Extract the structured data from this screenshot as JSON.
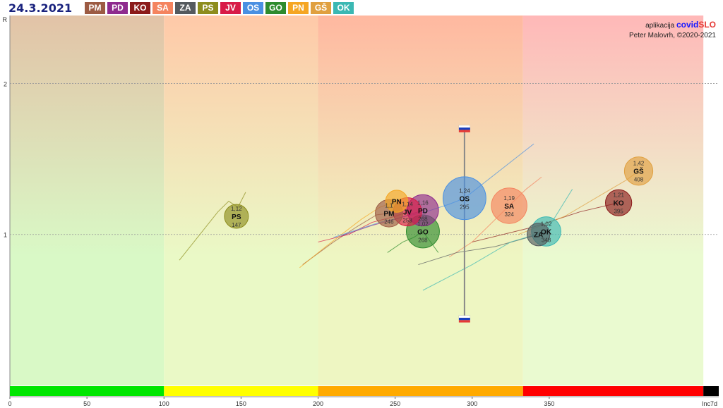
{
  "date": "24.3.2021",
  "credits": {
    "app_prefix": "aplikacija",
    "app_name_a": "covid",
    "app_name_b": "SLO",
    "author": "Peter Malovrh, ©2020-2021"
  },
  "colors": {
    "PM": "#9c5b43",
    "PD": "#8e2b8e",
    "KO": "#8b1a1a",
    "SA": "#f4845f",
    "ZA": "#555a5e",
    "PS": "#8d8d1e",
    "JV": "#d81b47",
    "OS": "#4a90e2",
    "GO": "#2e8b2e",
    "PN": "#f5a623",
    "GŠ": "#e0a040",
    "OK": "#3bb8b3",
    "zone_green": "#00e600",
    "zone_yellow": "#ffff00",
    "zone_orange": "#ffaa00",
    "zone_red": "#ff0000",
    "zone_black": "#000000"
  },
  "chart_data": {
    "type": "scatter",
    "xlabel": "Inc7d",
    "ylabel": "R",
    "xlim": [
      0,
      460
    ],
    "ylim": [
      0,
      2.45
    ],
    "x_ticks": [
      "0",
      "50",
      "100",
      "150",
      "200",
      "250",
      "300",
      "350"
    ],
    "x_tick_values": [
      0,
      50,
      100,
      150,
      200,
      250,
      300,
      350
    ],
    "y_ticks": [
      "1",
      "2"
    ],
    "y_tick_values": [
      1,
      2
    ],
    "zones": [
      {
        "from": 0,
        "to": 100,
        "color": "zone_green"
      },
      {
        "from": 100,
        "to": 200,
        "color": "zone_yellow"
      },
      {
        "from": 200,
        "to": 333,
        "color": "zone_orange"
      },
      {
        "from": 333,
        "to": 450,
        "color": "zone_red"
      },
      {
        "from": 450,
        "to": 460,
        "color": "zone_black"
      }
    ],
    "slovenia": {
      "x": 295,
      "r_high": 1.7,
      "r_low": 0.44
    },
    "regions": [
      {
        "code": "PS",
        "r": "1,12",
        "inc": "147",
        "x": 147,
        "y": 1.12,
        "size": 1.0,
        "trail": [
          [
            110,
            0.83
          ],
          [
            135,
            1.15
          ],
          [
            142,
            1.22
          ],
          [
            148,
            1.18
          ],
          [
            153,
            1.28
          ]
        ]
      },
      {
        "code": "PM",
        "r": "1,1",
        "inc": "246",
        "x": 246,
        "y": 1.14,
        "size": 1.3,
        "trail": [
          [
            190,
            0.8
          ],
          [
            210,
            0.95
          ],
          [
            225,
            1.05
          ],
          [
            238,
            1.13
          ],
          [
            246,
            1.14
          ]
        ]
      },
      {
        "code": "PN",
        "r": "",
        "inc": "",
        "x": 251,
        "y": 1.22,
        "size": 0.85,
        "trail": [
          [
            188,
            0.78
          ],
          [
            205,
            0.92
          ],
          [
            228,
            1.1
          ],
          [
            240,
            1.18
          ],
          [
            251,
            1.22
          ]
        ]
      },
      {
        "code": "JV",
        "r": "1,14",
        "inc": "258",
        "x": 258,
        "y": 1.15,
        "size": 1.4,
        "trail": [
          [
            200,
            0.95
          ],
          [
            220,
            1.0
          ],
          [
            235,
            1.08
          ],
          [
            250,
            1.12
          ],
          [
            258,
            1.15
          ]
        ]
      },
      {
        "code": "PD",
        "r": "1,16",
        "inc": "268",
        "x": 268,
        "y": 1.16,
        "size": 1.7,
        "trail": [
          [
            215,
            0.99
          ],
          [
            235,
            1.06
          ],
          [
            250,
            1.1
          ],
          [
            262,
            1.14
          ],
          [
            268,
            1.16
          ]
        ]
      },
      {
        "code": "GO",
        "r": "1,02",
        "inc": "268",
        "x": 268,
        "y": 1.02,
        "size": 1.9,
        "trail": [
          [
            245,
            0.88
          ],
          [
            255,
            0.95
          ],
          [
            262,
            0.98
          ],
          [
            268,
            1.02
          ],
          [
            278,
            0.88
          ]
        ]
      },
      {
        "code": "OS",
        "r": "1,24",
        "inc": "295",
        "x": 295,
        "y": 1.24,
        "size": 3.2,
        "trail": [
          [
            210,
            0.98
          ],
          [
            240,
            1.08
          ],
          [
            270,
            1.15
          ],
          [
            285,
            1.2
          ],
          [
            295,
            1.24
          ],
          [
            340,
            1.6
          ]
        ]
      },
      {
        "code": "SA",
        "r": "1,19",
        "inc": "324",
        "x": 324,
        "y": 1.19,
        "size": 2.2,
        "trail": [
          [
            285,
            0.85
          ],
          [
            300,
            0.95
          ],
          [
            315,
            1.1
          ],
          [
            335,
            1.3
          ],
          [
            345,
            1.38
          ]
        ]
      },
      {
        "code": "ZA",
        "r": "",
        "inc": "",
        "x": 343,
        "y": 1.0,
        "size": 0.9,
        "trail": [
          [
            265,
            0.8
          ],
          [
            290,
            0.88
          ],
          [
            315,
            0.92
          ],
          [
            343,
            1.0
          ]
        ]
      },
      {
        "code": "OK",
        "r": "1,02",
        "inc": "348",
        "x": 348,
        "y": 1.02,
        "size": 1.5,
        "trail": [
          [
            268,
            0.63
          ],
          [
            300,
            0.8
          ],
          [
            325,
            0.95
          ],
          [
            348,
            1.02
          ],
          [
            365,
            1.3
          ]
        ]
      },
      {
        "code": "KO",
        "r": "1,21",
        "inc": "395",
        "x": 395,
        "y": 1.21,
        "size": 1.2,
        "trail": [
          [
            300,
            0.95
          ],
          [
            340,
            1.05
          ],
          [
            370,
            1.15
          ],
          [
            395,
            1.21
          ]
        ]
      },
      {
        "code": "GŠ",
        "r": "1,42",
        "inc": "408",
        "x": 408,
        "y": 1.42,
        "size": 1.4,
        "trail": [
          [
            330,
            1.0
          ],
          [
            360,
            1.12
          ],
          [
            385,
            1.27
          ],
          [
            400,
            1.36
          ],
          [
            408,
            1.42
          ]
        ]
      }
    ]
  }
}
